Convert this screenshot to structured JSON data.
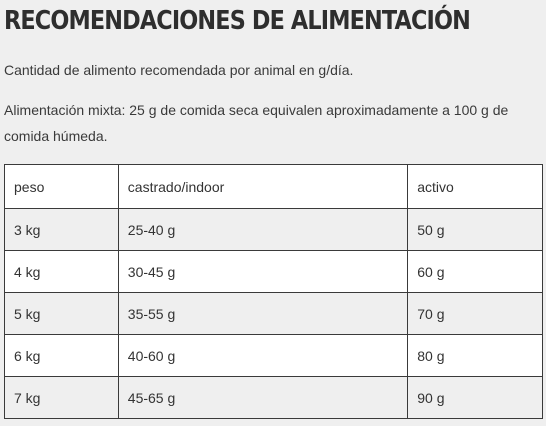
{
  "heading": "RECOMENDACIONES DE ALIMENTACIÓN",
  "paragraphs": {
    "amount": "Cantidad de alimento recomendada por animal en g/día.",
    "mixed": "Alimentación mixta: 25 g de comida seca equivalen aproximadamente a 100 g de comida húmeda."
  },
  "table": {
    "headers": [
      "peso",
      "castrado/indoor",
      "activo"
    ],
    "rows": [
      [
        "3 kg",
        "25-40 g",
        "50 g"
      ],
      [
        "4 kg",
        "30-45 g",
        "60 g"
      ],
      [
        "5 kg",
        "35-55 g",
        "70 g"
      ],
      [
        "6 kg",
        "40-60 g",
        "80 g"
      ],
      [
        "7 kg",
        "45-65 g",
        "90 g"
      ]
    ]
  }
}
